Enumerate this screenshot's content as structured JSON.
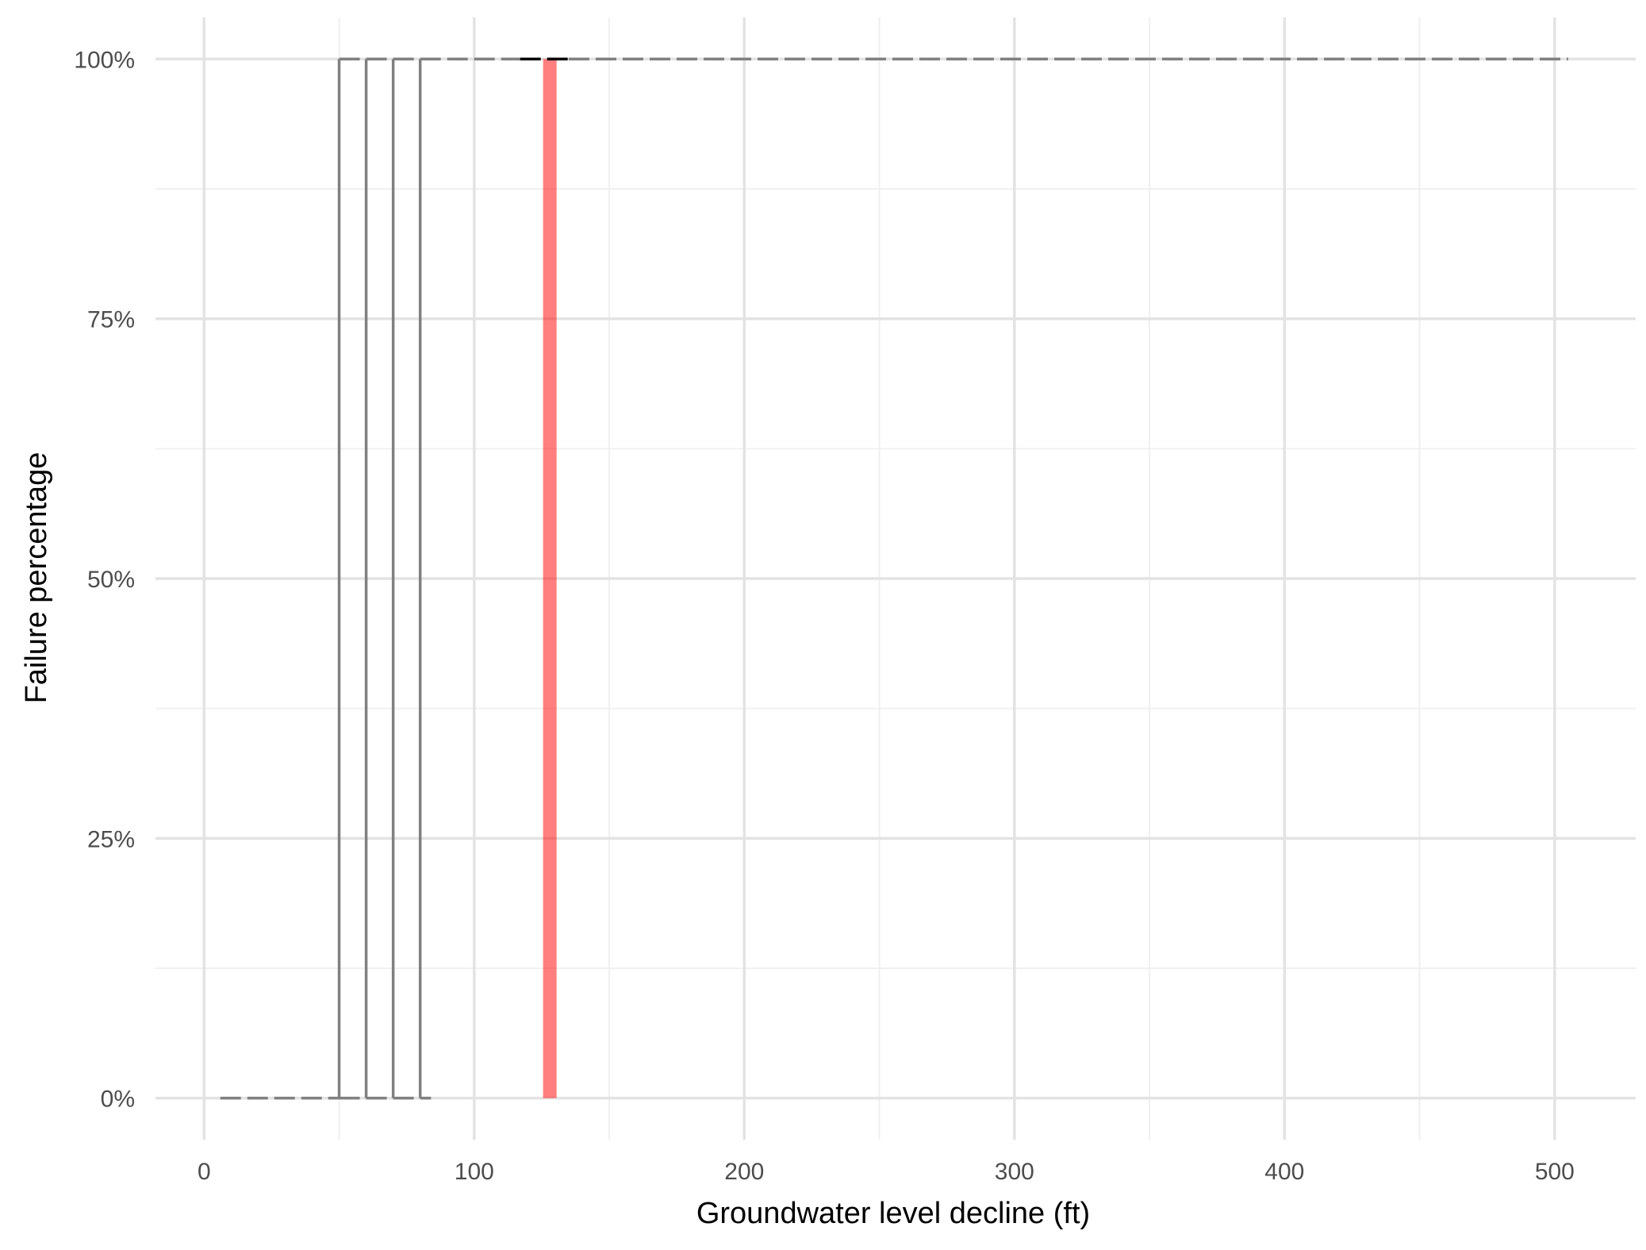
{
  "chart_data": {
    "type": "line",
    "title": "",
    "xlabel": "Groundwater level decline (ft)",
    "ylabel": "Failure percentage",
    "xlim": [
      -18,
      530
    ],
    "ylim": [
      -0.04,
      1.04
    ],
    "x_ticks": [
      0,
      100,
      200,
      300,
      400,
      500
    ],
    "x_tick_labels": [
      "0",
      "100",
      "200",
      "300",
      "400",
      "500"
    ],
    "y_ticks": [
      0,
      0.25,
      0.5,
      0.75,
      1
    ],
    "y_tick_labels": [
      "0%",
      "25%",
      "50%",
      "75%",
      "100%"
    ],
    "grid": true,
    "legend": "none",
    "series": [
      {
        "color": "#808080",
        "steps": [
          {
            "x0": 6,
            "x1": 50,
            "y": 0
          },
          {
            "x0": 50,
            "x1": 60,
            "y": 1
          },
          {
            "x0": 50,
            "x1": 60,
            "y": 0
          },
          {
            "x0": 60,
            "x1": 70,
            "y": 1
          },
          {
            "x0": 60,
            "x1": 70,
            "y": 0
          },
          {
            "x0": 70,
            "x1": 80,
            "y": 1
          },
          {
            "x0": 70,
            "x1": 84,
            "y": 0
          },
          {
            "x0": 80,
            "x1": 117,
            "y": 1
          },
          {
            "x0": 135,
            "x1": 505,
            "y": 1
          }
        ],
        "verticals": [
          50,
          60,
          70,
          80
        ]
      },
      {
        "color": "#000000",
        "steps": [
          {
            "x0": 117,
            "x1": 135,
            "y": 1
          }
        ]
      }
    ],
    "highlight": {
      "color": "#ff0000",
      "opacity": 0.5,
      "x0": 125.5,
      "x1": 130.5,
      "y0": 0,
      "y1": 1
    }
  }
}
